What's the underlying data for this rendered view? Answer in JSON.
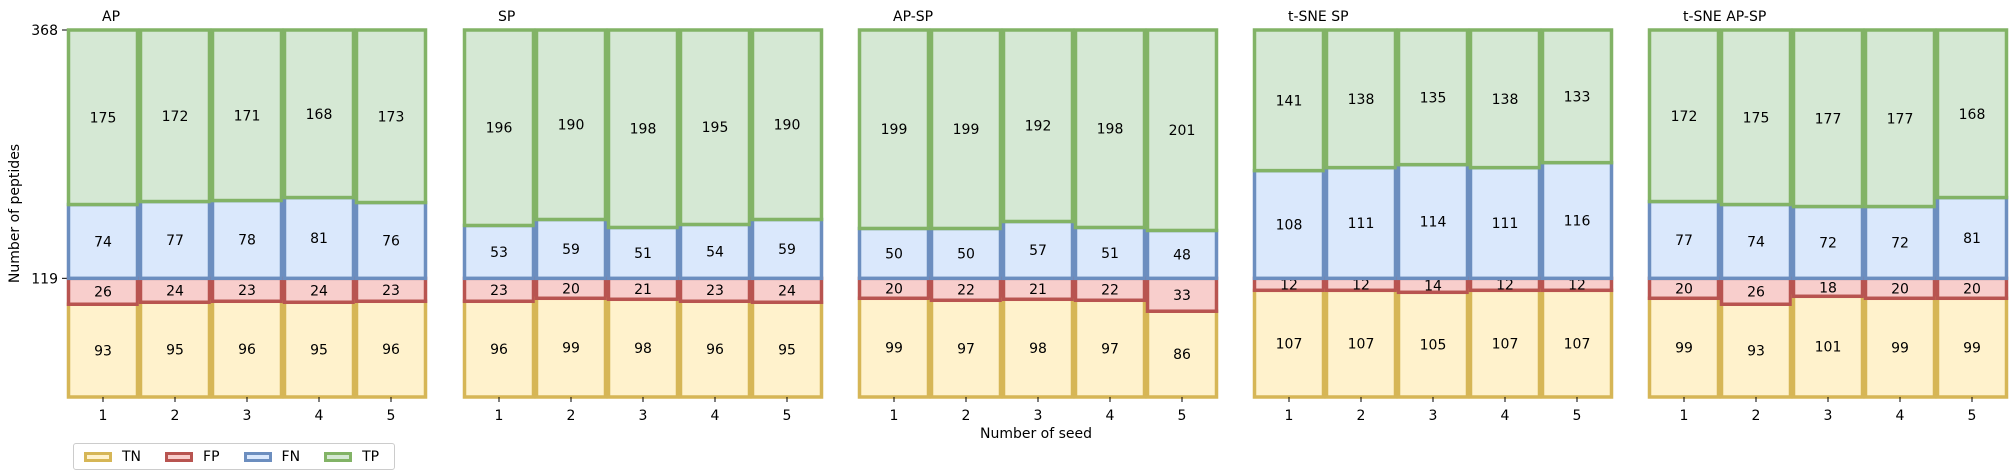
{
  "chart_data": {
    "type": "bar",
    "stacked": true,
    "ylabel": "Number of peptides",
    "xlabel": "Number of seed",
    "yticks": [
      119,
      368
    ],
    "ylim": [
      0,
      368
    ],
    "categories": [
      "1",
      "2",
      "3",
      "4",
      "5"
    ],
    "series_order": [
      "TN",
      "FP",
      "FN",
      "TP"
    ],
    "colors": {
      "TN": {
        "fill": "#fff2cc",
        "edge": "#d6b656"
      },
      "FP": {
        "fill": "#f8cecc",
        "edge": "#b85450"
      },
      "FN": {
        "fill": "#dae8fc",
        "edge": "#6c8ebf"
      },
      "TP": {
        "fill": "#d5e8d4",
        "edge": "#82b366"
      }
    },
    "legend": [
      "TN",
      "FP",
      "FN",
      "TP"
    ],
    "panels": [
      {
        "title": "AP",
        "TN": [
          93,
          95,
          96,
          95,
          96
        ],
        "FP": [
          26,
          24,
          23,
          24,
          23
        ],
        "FN": [
          74,
          77,
          78,
          81,
          76
        ],
        "TP": [
          175,
          172,
          171,
          168,
          173
        ]
      },
      {
        "title": "SP",
        "TN": [
          96,
          99,
          98,
          96,
          95
        ],
        "FP": [
          23,
          20,
          21,
          23,
          24
        ],
        "FN": [
          53,
          59,
          51,
          54,
          59
        ],
        "TP": [
          196,
          190,
          198,
          195,
          190
        ]
      },
      {
        "title": "AP-SP",
        "TN": [
          99,
          97,
          98,
          97,
          86
        ],
        "FP": [
          20,
          22,
          21,
          22,
          33
        ],
        "FN": [
          50,
          50,
          57,
          51,
          48
        ],
        "TP": [
          199,
          199,
          192,
          198,
          201
        ]
      },
      {
        "title": "t-SNE SP",
        "TN": [
          107,
          107,
          105,
          107,
          107
        ],
        "FP": [
          12,
          12,
          14,
          12,
          12
        ],
        "FN": [
          108,
          111,
          114,
          111,
          116
        ],
        "TP": [
          141,
          138,
          135,
          138,
          133
        ]
      },
      {
        "title": "t-SNE AP-SP",
        "TN": [
          99,
          93,
          101,
          99,
          99
        ],
        "FP": [
          20,
          26,
          18,
          20,
          20
        ],
        "FN": [
          77,
          74,
          72,
          72,
          81
        ],
        "TP": [
          172,
          175,
          177,
          177,
          168
        ]
      }
    ]
  }
}
